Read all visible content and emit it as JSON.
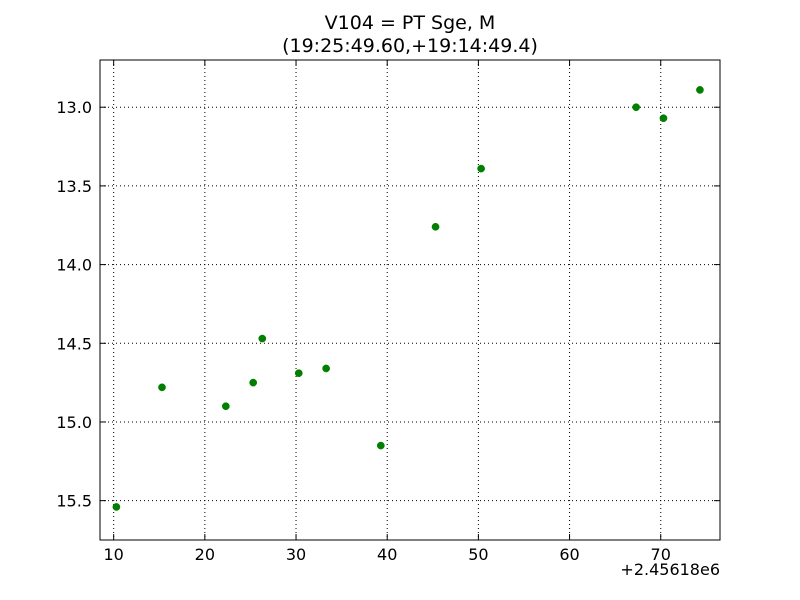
{
  "chart_data": {
    "type": "scatter",
    "title": "V104 = PT Sge, M",
    "subtitle": "(19:25:49.60,+19:14:49.4)",
    "xlabel": "",
    "ylabel": "",
    "x_offset_label": "+2.45618e6",
    "xlim": [
      8.5,
      76.5
    ],
    "ylim": [
      15.75,
      12.7
    ],
    "y_inverted": true,
    "x_ticks": [
      10,
      20,
      30,
      40,
      50,
      60,
      70
    ],
    "y_ticks": [
      13.0,
      13.5,
      14.0,
      14.5,
      15.0,
      15.5
    ],
    "x_tick_labels": [
      "10",
      "20",
      "30",
      "40",
      "50",
      "60",
      "70"
    ],
    "y_tick_labels": [
      "13.0",
      "13.5",
      "14.0",
      "14.5",
      "15.0",
      "15.5"
    ],
    "grid": true,
    "marker_color": "#007f00",
    "points": [
      {
        "x": 10.3,
        "y": 15.54
      },
      {
        "x": 15.3,
        "y": 14.78
      },
      {
        "x": 22.3,
        "y": 14.9
      },
      {
        "x": 25.3,
        "y": 14.75
      },
      {
        "x": 26.3,
        "y": 14.47
      },
      {
        "x": 30.3,
        "y": 14.69
      },
      {
        "x": 33.3,
        "y": 14.66
      },
      {
        "x": 39.3,
        "y": 15.15
      },
      {
        "x": 45.3,
        "y": 13.76
      },
      {
        "x": 50.3,
        "y": 13.39
      },
      {
        "x": 67.3,
        "y": 13.0
      },
      {
        "x": 70.3,
        "y": 13.07
      },
      {
        "x": 74.3,
        "y": 12.89
      }
    ]
  }
}
